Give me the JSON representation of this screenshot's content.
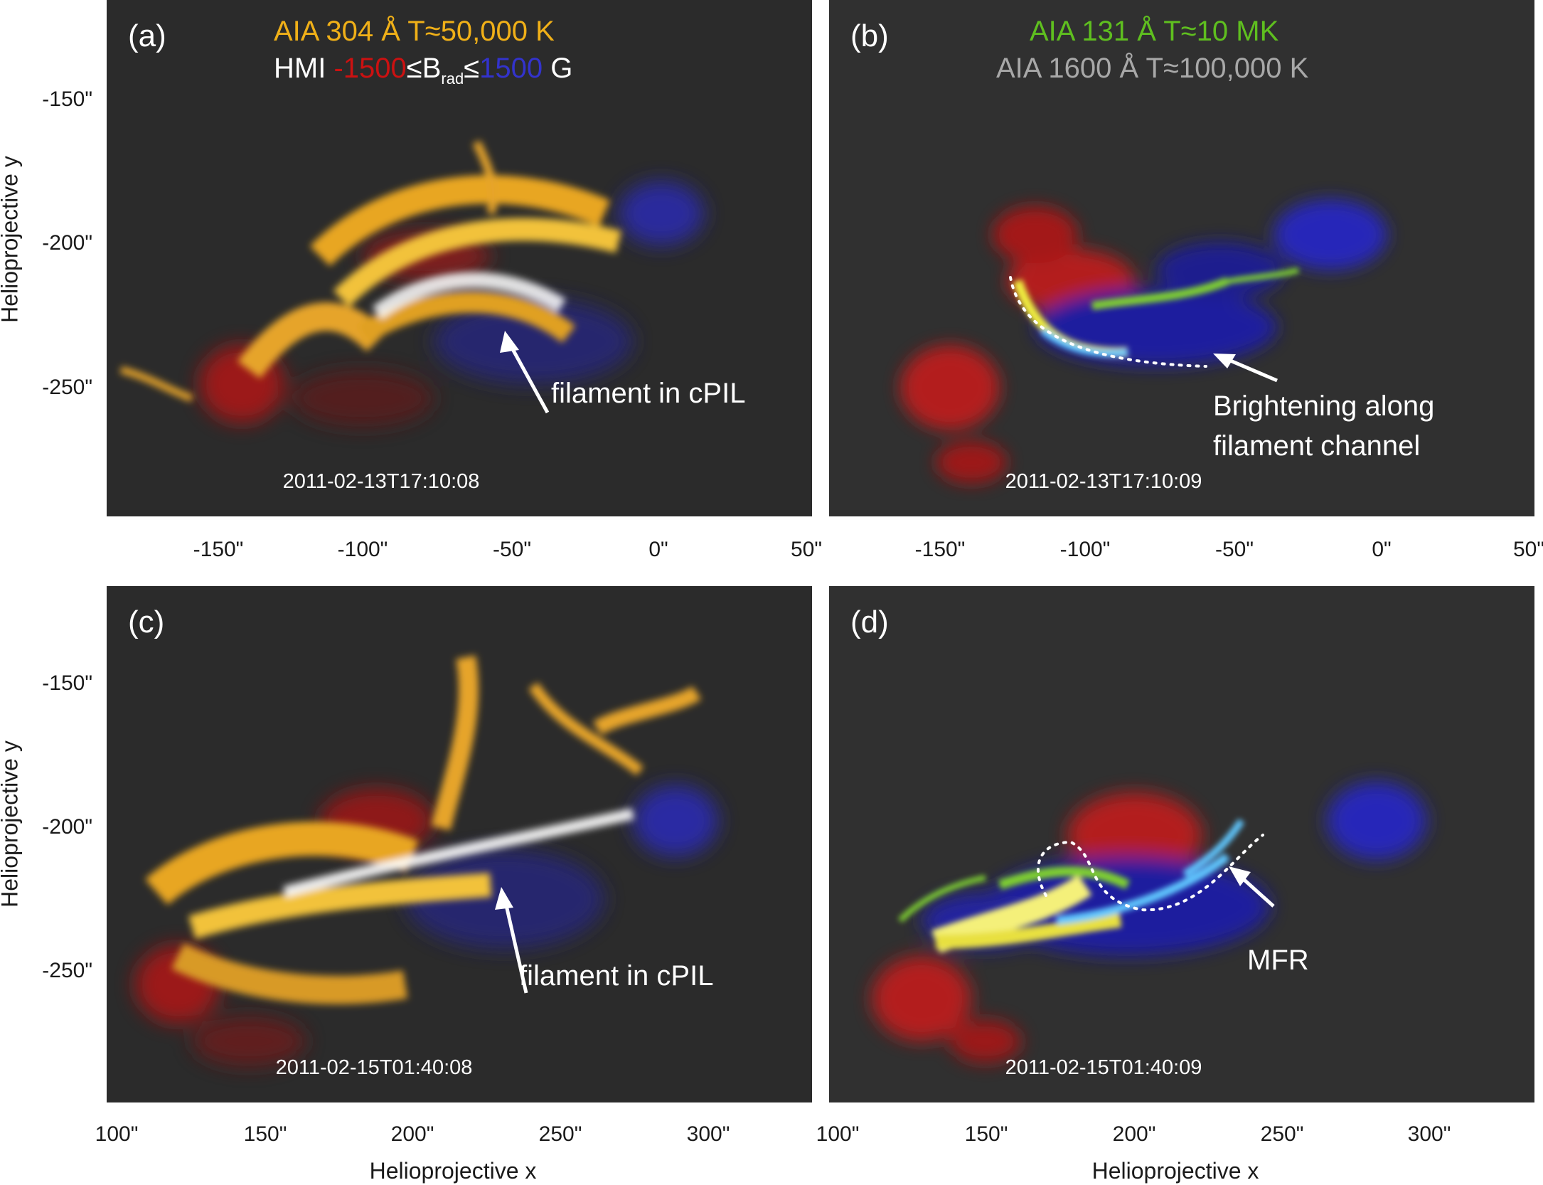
{
  "panels": {
    "a": {
      "label": "(a)",
      "timestamp": "2011-02-13T17:10:08",
      "legend_line1": "AIA 304 Å  T≈50,000 K",
      "legend_line2_prefix": "HMI ",
      "legend_neg": "-1500",
      "legend_le1": "≤B",
      "legend_sub": "rad",
      "legend_le2": "≤",
      "legend_pos": "1500",
      "legend_unit": " G",
      "annotation": "filament in cPIL"
    },
    "b": {
      "label": "(b)",
      "timestamp": "2011-02-13T17:10:09",
      "legend_line1": "AIA 131 Å  T≈10 MK",
      "legend_line2": "AIA 1600 Å  T≈100,000 K",
      "annotation_line1": "Brightening along",
      "annotation_line2": "filament channel"
    },
    "c": {
      "label": "(c)",
      "timestamp": "2011-02-15T01:40:08",
      "annotation": "filament in cPIL"
    },
    "d": {
      "label": "(d)",
      "timestamp": "2011-02-15T01:40:09",
      "annotation": "MFR"
    }
  },
  "axes": {
    "y_title": "Helioprojective y",
    "x_title": "Helioprojective x",
    "y_ticks": [
      "-150\"",
      "-200\"",
      "-250\""
    ],
    "x_ticks_top": [
      "-150\"",
      "-100\"",
      "-50\"",
      "0\"",
      "50\""
    ],
    "x_ticks_bottom": [
      "100\"",
      "150\"",
      "200\"",
      "250\"",
      "300\""
    ]
  },
  "colors": {
    "aia304": "#f0b018",
    "aia131": "#5fbf1f",
    "aia1600": "#a8a8a8",
    "hmi_negative": "#cc1111",
    "hmi_positive": "#2222cc",
    "background": "#2a2a2a"
  }
}
